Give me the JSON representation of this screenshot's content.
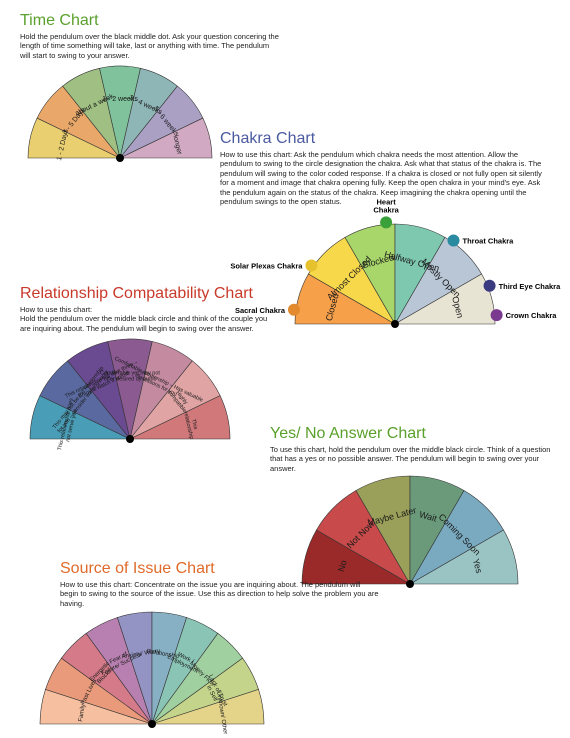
{
  "time_chart": {
    "title": "Time Chart",
    "title_color": "#5aa02c",
    "desc": "Hold the pendulum over the black middle dot. Ask your question concering the length of time something will take, last or anything with time. The pendulum will start to swing to your answer.",
    "segments": [
      {
        "label": "1 - 2 Days",
        "color": "#e9cf6f"
      },
      {
        "label": "3 - 5 Days",
        "color": "#e9a869"
      },
      {
        "label": "about a week",
        "color": "#9fbf83"
      },
      {
        "label": "1 - 2 weeks",
        "color": "#7fc29b"
      },
      {
        "label": "3 - 4 weeks",
        "color": "#8fb6b6"
      },
      {
        "label": "5 - 6 weeks",
        "color": "#a9a0c4"
      },
      {
        "label": "longer",
        "color": "#d1a9c2"
      }
    ],
    "label_fontsize": 7,
    "outline": "#333333"
  },
  "chakra_chart": {
    "title": "Chakra Chart",
    "title_color": "#4a5aa0",
    "desc": "How to use this chart: Ask the pendulum which chakra needs the most attention. Allow the pendulum to swing to the circle designation the chakra. Ask what that status of the chakra is. The pendulum will swing to the color coded response. If a chakra is closed or not fully open sit silently for a moment and image that chakra opening fully. Keep the open chakra in your mind's eye. Ask the pendulum again on the status of the chakra. Keep imagining the chakra opening until the pendulum swings to the open status.",
    "segments": [
      {
        "label": "Closed",
        "color": "#f7a04a"
      },
      {
        "label": "Almost Closed",
        "color": "#f6d84a"
      },
      {
        "label": "Blocked",
        "color": "#a8d66a"
      },
      {
        "label": "Halfway Open",
        "color": "#7ec8b0"
      },
      {
        "label": "Mostly Open",
        "color": "#b8c6d6"
      },
      {
        "label": "Open",
        "color": "#e8e4d4"
      }
    ],
    "label_fontsize": 9,
    "outline": "#333333",
    "chakra_dots": [
      {
        "label": "Sacral Chakra",
        "color": "#e38a2e",
        "angle": 172,
        "side": "left"
      },
      {
        "label": "Solar Plexas Chakra",
        "color": "#e6c22e",
        "angle": 145,
        "side": "left"
      },
      {
        "label": "Heart Chakra",
        "color": "#3aa03a",
        "angle": 95,
        "side": "top",
        "stack": true
      },
      {
        "label": "Throat Chakra",
        "color": "#2a8aa0",
        "angle": 55,
        "side": "right"
      },
      {
        "label": "Third Eye Chakra",
        "color": "#3a3a80",
        "angle": 22,
        "side": "right"
      },
      {
        "label": "Crown Chakra",
        "color": "#7a3a90",
        "angle": 5,
        "side": "right"
      }
    ]
  },
  "relationship_chart": {
    "title": "Relationship Compatability Chart",
    "title_color": "#c83a2a",
    "desc": "How to use this chart:\nHold the pendulum over the middle black circle and think of the couple you are inquiring about. The pendulum will begin to swing over the answer.",
    "segments": [
      {
        "label": "This relationship does not serve you",
        "color": "#4a9db6"
      },
      {
        "label": "This may not be the relationship for you – consider walking away",
        "color": "#5a6aa0"
      },
      {
        "label": "This relationship will take three – Enjoy & watch it unfold",
        "color": "#6a4a90"
      },
      {
        "label": "Comfortable yet may not offer desired dynamic",
        "color": "#8a5a90"
      },
      {
        "label": "Comfortable relationship – Has valuable life lessons for you",
        "color": "#c38aa0"
      },
      {
        "label": "Highly compatible",
        "color": "#e0a4a4"
      },
      {
        "label": "This relationship",
        "color": "#d0787a"
      }
    ],
    "label_fontsize": 5.5,
    "outline": "#333333"
  },
  "yesno_chart": {
    "title": "Yes/ No Answer Chart",
    "title_color": "#5aa02c",
    "desc": "To use this chart, hold the pendulum over the middle black circle. Think of a question that has a yes or no possible answer. The pendulum will begin to swing over your answer.",
    "segments": [
      {
        "label": "No",
        "color": "#9a2a2a"
      },
      {
        "label": "Not Now",
        "color": "#c84a4a"
      },
      {
        "label": "Maybe Later",
        "color": "#9aa05a"
      },
      {
        "label": "Wait",
        "color": "#6a9a7a"
      },
      {
        "label": "Coming Soon",
        "color": "#7aaac0"
      },
      {
        "label": "Yes",
        "color": "#9ac4c4"
      }
    ],
    "label_fontsize": 9,
    "outline": "#333333"
  },
  "source_chart": {
    "title": "Source of Issue Chart",
    "title_color": "#e06a2a",
    "desc": "How to use this chart: Concentrate on the issue you are inquiring about. The pendulum will begin to swing to the source of the issue. Use this as direction to help solve the problem you are having.",
    "segments": [
      {
        "label": "Family",
        "color": "#f5bfa0"
      },
      {
        "label": "Past Lives",
        "color": "#e89a7a"
      },
      {
        "label": "Energetic Blocks",
        "color": "#d47a88"
      },
      {
        "label": "Fear of Failure/ Success",
        "color": "#b880b0"
      },
      {
        "label": "Anxiety/ Worry",
        "color": "#9494c4"
      },
      {
        "label": "Relationship",
        "color": "#88b0c4"
      },
      {
        "label": "Work / Employment",
        "color": "#8ac4b4"
      },
      {
        "label": "Money Flow",
        "color": "#a0d0a0"
      },
      {
        "label": "Lack of Trust in Self",
        "color": "#c4d48a"
      },
      {
        "label": "Unknown/ Other",
        "color": "#e4d48a"
      }
    ],
    "label_fontsize": 6,
    "outline": "#333333"
  }
}
